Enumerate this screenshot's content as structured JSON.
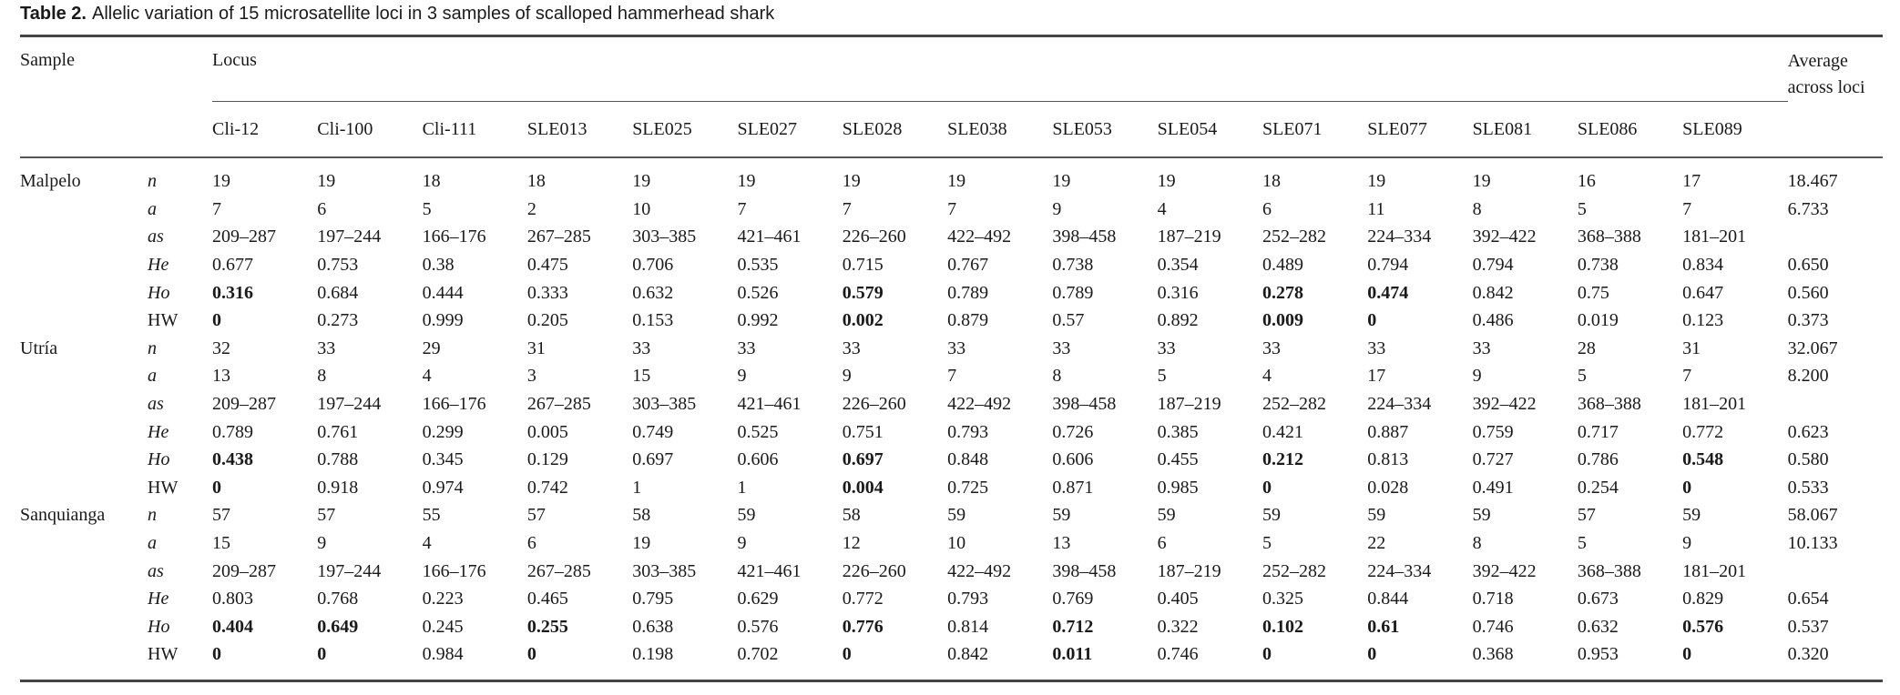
{
  "caption": {
    "label": "Table 2.",
    "title": "Allelic variation of 15 microsatellite loci in 3 samples of scalloped hammerhead shark"
  },
  "table": {
    "header": {
      "sample": "Sample",
      "locus": "Locus",
      "average": "Average across loci",
      "loci": [
        "Cli-12",
        "Cli-100",
        "Cli-111",
        "SLE013",
        "SLE025",
        "SLE027",
        "SLE028",
        "SLE038",
        "SLE053",
        "SLE054",
        "SLE071",
        "SLE077",
        "SLE081",
        "SLE086",
        "SLE089"
      ]
    },
    "groups": [
      {
        "sample": "Malpelo",
        "rows": [
          {
            "stat": "n",
            "italic": true,
            "values": [
              "19",
              "19",
              "18",
              "18",
              "19",
              "19",
              "19",
              "19",
              "19",
              "19",
              "18",
              "19",
              "19",
              "16",
              "17"
            ],
            "average": "18.467"
          },
          {
            "stat": "a",
            "italic": true,
            "values": [
              "7",
              "6",
              "5",
              "2",
              "10",
              "7",
              "7",
              "7",
              "9",
              "4",
              "6",
              "11",
              "8",
              "5",
              "7"
            ],
            "average": "6.733"
          },
          {
            "stat": "as",
            "italic": true,
            "values": [
              "209–287",
              "197–244",
              "166–176",
              "267–285",
              "303–385",
              "421–461",
              "226–260",
              "422–492",
              "398–458",
              "187–219",
              "252–282",
              "224–334",
              "392–422",
              "368–388",
              "181–201"
            ]
          },
          {
            "stat": "He",
            "italic": true,
            "values": [
              "0.677",
              "0.753",
              "0.38",
              "0.475",
              "0.706",
              "0.535",
              "0.715",
              "0.767",
              "0.738",
              "0.354",
              "0.489",
              "0.794",
              "0.794",
              "0.738",
              "0.834"
            ],
            "average": "0.650"
          },
          {
            "stat": "Ho",
            "italic": true,
            "values": [
              "0.316",
              "0.684",
              "0.444",
              "0.333",
              "0.632",
              "0.526",
              "0.579",
              "0.789",
              "0.789",
              "0.316",
              "0.278",
              "0.474",
              "0.842",
              "0.75",
              "0.647"
            ],
            "average": "0.560",
            "bold": [
              0,
              6,
              10,
              11
            ]
          },
          {
            "stat": "HW",
            "italic": false,
            "values": [
              "0",
              "0.273",
              "0.999",
              "0.205",
              "0.153",
              "0.992",
              "0.002",
              "0.879",
              "0.57",
              "0.892",
              "0.009",
              "0",
              "0.486",
              "0.019",
              "0.123"
            ],
            "average": "0.373",
            "bold": [
              0,
              6,
              10,
              11
            ]
          }
        ]
      },
      {
        "sample": "Utría",
        "rows": [
          {
            "stat": "n",
            "italic": true,
            "values": [
              "32",
              "33",
              "29",
              "31",
              "33",
              "33",
              "33",
              "33",
              "33",
              "33",
              "33",
              "33",
              "33",
              "28",
              "31"
            ],
            "average": "32.067"
          },
          {
            "stat": "a",
            "italic": true,
            "values": [
              "13",
              "8",
              "4",
              "3",
              "15",
              "9",
              "9",
              "7",
              "8",
              "5",
              "4",
              "17",
              "9",
              "5",
              "7"
            ],
            "average": "8.200"
          },
          {
            "stat": "as",
            "italic": true,
            "values": [
              "209–287",
              "197–244",
              "166–176",
              "267–285",
              "303–385",
              "421–461",
              "226–260",
              "422–492",
              "398–458",
              "187–219",
              "252–282",
              "224–334",
              "392–422",
              "368–388",
              "181–201"
            ]
          },
          {
            "stat": "He",
            "italic": true,
            "values": [
              "0.789",
              "0.761",
              "0.299",
              "0.005",
              "0.749",
              "0.525",
              "0.751",
              "0.793",
              "0.726",
              "0.385",
              "0.421",
              "0.887",
              "0.759",
              "0.717",
              "0.772"
            ],
            "average": "0.623"
          },
          {
            "stat": "Ho",
            "italic": true,
            "values": [
              "0.438",
              "0.788",
              "0.345",
              "0.129",
              "0.697",
              "0.606",
              "0.697",
              "0.848",
              "0.606",
              "0.455",
              "0.212",
              "0.813",
              "0.727",
              "0.786",
              "0.548"
            ],
            "average": "0.580",
            "bold": [
              0,
              6,
              10,
              14
            ]
          },
          {
            "stat": "HW",
            "italic": false,
            "values": [
              "0",
              "0.918",
              "0.974",
              "0.742",
              "1",
              "1",
              "0.004",
              "0.725",
              "0.871",
              "0.985",
              "0",
              "0.028",
              "0.491",
              "0.254",
              "0"
            ],
            "average": "0.533",
            "bold": [
              0,
              6,
              10,
              14
            ]
          }
        ]
      },
      {
        "sample": "Sanquianga",
        "rows": [
          {
            "stat": "n",
            "italic": true,
            "values": [
              "57",
              "57",
              "55",
              "57",
              "58",
              "59",
              "58",
              "59",
              "59",
              "59",
              "59",
              "59",
              "59",
              "57",
              "59"
            ],
            "average": "58.067"
          },
          {
            "stat": "a",
            "italic": true,
            "values": [
              "15",
              "9",
              "4",
              "6",
              "19",
              "9",
              "12",
              "10",
              "13",
              "6",
              "5",
              "22",
              "8",
              "5",
              "9"
            ],
            "average": "10.133"
          },
          {
            "stat": "as",
            "italic": true,
            "values": [
              "209–287",
              "197–244",
              "166–176",
              "267–285",
              "303–385",
              "421–461",
              "226–260",
              "422–492",
              "398–458",
              "187–219",
              "252–282",
              "224–334",
              "392–422",
              "368–388",
              "181–201"
            ]
          },
          {
            "stat": "He",
            "italic": true,
            "values": [
              "0.803",
              "0.768",
              "0.223",
              "0.465",
              "0.795",
              "0.629",
              "0.772",
              "0.793",
              "0.769",
              "0.405",
              "0.325",
              "0.844",
              "0.718",
              "0.673",
              "0.829"
            ],
            "average": "0.654"
          },
          {
            "stat": "Ho",
            "italic": true,
            "values": [
              "0.404",
              "0.649",
              "0.245",
              "0.255",
              "0.638",
              "0.576",
              "0.776",
              "0.814",
              "0.712",
              "0.322",
              "0.102",
              "0.61",
              "0.746",
              "0.632",
              "0.576"
            ],
            "average": "0.537",
            "bold": [
              0,
              1,
              3,
              6,
              8,
              10,
              11,
              14
            ]
          },
          {
            "stat": "HW",
            "italic": false,
            "values": [
              "0",
              "0",
              "0.984",
              "0",
              "0.198",
              "0.702",
              "0",
              "0.842",
              "0.011",
              "0.746",
              "0",
              "0",
              "0.368",
              "0.953",
              "0"
            ],
            "average": "0.320",
            "bold": [
              0,
              1,
              3,
              6,
              8,
              10,
              11,
              14
            ]
          }
        ]
      }
    ]
  }
}
